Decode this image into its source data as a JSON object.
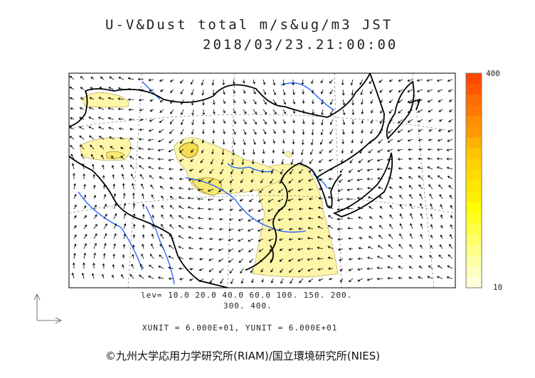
{
  "title": {
    "line1": "U-V&Dust total m/s&ug/m3 JST",
    "line2": "2018/03/23.21:00:00"
  },
  "contour_levels_label": {
    "line1": "lev= 10.0 20.0 40.0 60.0 100. 150. 200.",
    "line2": "300. 400."
  },
  "units_label": "XUNIT = 6.000E+01, YUNIT = 6.000E+01",
  "copyright": "©九州大学応用力学研究所(RIAM)/国立環境研究所(NIES)",
  "colorbar": {
    "max_label": "400",
    "min_label": "10",
    "colors": [
      "#ff4800",
      "#ff5800",
      "#ff6c00",
      "#ff7800",
      "#ff8e00",
      "#ff9a00",
      "#ffb200",
      "#ffc400",
      "#ffd200",
      "#ffdc00",
      "#ffe600",
      "#ffee00",
      "#ffff00",
      "#ffff22",
      "#ffff44",
      "#ffff66",
      "#ffff88",
      "#ffffa4",
      "#ffffc0",
      "#ffffdc"
    ]
  },
  "colors": {
    "coastline": "#000000",
    "rivers": "#1a5cff",
    "wind_arrows": "#000000",
    "dust_low": "#fdf6a8"
  },
  "reference_vector_icon": "axis-arrows-icon"
}
